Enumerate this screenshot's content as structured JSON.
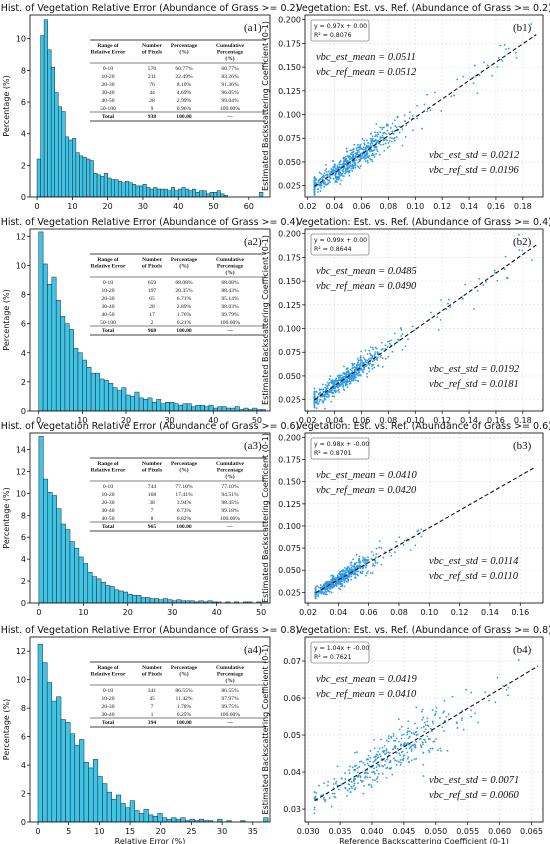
{
  "colors": {
    "bar_fill": "#40c4e4",
    "bar_edge": "#17263d",
    "scatter": "#2e9be6",
    "fit_line": "#111111",
    "frame": "#000000"
  },
  "chart_data": [
    {
      "type": "bar",
      "panel_label": "(a1)",
      "title": "Hist. of Vegetation Relative Error (Abundance of Grass >= 0.2)",
      "xlabel": "",
      "ylabel": "Percentage (%)",
      "xlim": [
        -2,
        66
      ],
      "ylim": [
        0,
        11.5
      ],
      "xticks": [
        0,
        10,
        20,
        30,
        40,
        50,
        60
      ],
      "yticks": [
        0,
        2,
        4,
        6,
        8,
        10
      ],
      "bin_width": 1,
      "values": [
        2.4,
        10.2,
        11.2,
        9.3,
        8.2,
        6.6,
        5.7,
        5.4,
        3.8,
        3.6,
        3.7,
        2.8,
        2.6,
        2.5,
        2.4,
        2.3,
        1.5,
        1.4,
        1.3,
        1.5,
        1.2,
        1.1,
        1.1,
        1.0,
        0.9,
        1.0,
        0.9,
        0.8,
        0.7,
        0.7,
        0.8,
        0.6,
        0.5,
        0.6,
        0.5,
        0.5,
        0.5,
        0.4,
        0.6,
        0.4,
        0.5,
        0.6,
        0.5,
        0.4,
        0.5,
        0.3,
        0.4,
        0.4,
        0.2,
        0.3,
        0.3,
        0.4,
        0.2,
        0.1,
        0,
        0,
        0,
        0,
        0,
        0,
        0,
        0,
        0,
        0.3
      ],
      "table": {
        "headers": [
          "Range of Relative Error",
          "Number of Pixels",
          "Percentage (%)",
          "Cumulative Percentage (%)"
        ],
        "rows": [
          [
            "0-10",
            "570",
            "60.77%",
            "60.77%"
          ],
          [
            "10-20",
            "211",
            "22.49%",
            "83.26%"
          ],
          [
            "20-30",
            "76",
            "8.10%",
            "91.36%"
          ],
          [
            "30-40",
            "44",
            "4.69%",
            "96.05%"
          ],
          [
            "40-50",
            "28",
            "2.99%",
            "99.04%"
          ],
          [
            "50-100",
            "9",
            "0.96%",
            "100.00%"
          ]
        ],
        "total": [
          "Total",
          "938",
          "100.00",
          "—"
        ]
      }
    },
    {
      "type": "scatter",
      "panel_label": "(b1)",
      "title": "Vegetation: Est. vs. Ref. (Abundance of Grass >= 0.2)",
      "xlabel": "",
      "ylabel": "Estimated Backscattering Coefficient (0-1)",
      "xlim": [
        0.018,
        0.195
      ],
      "ylim": [
        0.013,
        0.205
      ],
      "xticks": [
        0.02,
        0.04,
        0.06,
        0.08,
        0.1,
        0.12,
        0.14,
        0.16,
        0.18
      ],
      "yticks": [
        0.025,
        0.05,
        0.075,
        0.1,
        0.125,
        0.15,
        0.175,
        0.2
      ],
      "fit": {
        "slope": 0.97,
        "intercept": 0.0,
        "x_from": 0.025,
        "x_to": 0.19
      },
      "legend_lines": [
        "y = 0.97x + 0.00",
        "R² = 0.8076"
      ],
      "stats": {
        "est_mean": "vbc_est_mean = 0.0511",
        "ref_mean": "vbc_ref_mean = 0.0512",
        "est_std": "vbc_est_std = 0.0212",
        "ref_std": "vbc_ref_std = 0.0196"
      },
      "cloud": {
        "x_center": 0.05,
        "x_spread": 0.018,
        "x_min": 0.025,
        "x_max": 0.19,
        "noise": 0.008,
        "count": 640
      }
    },
    {
      "type": "bar",
      "panel_label": "(a2)",
      "title": "Hist. of Vegetation Relative Error (Abundance of Grass >= 0.4)",
      "xlabel": "",
      "ylabel": "Percentage (%)",
      "xlim": [
        -2,
        53
      ],
      "ylim": [
        0,
        12.5
      ],
      "xticks": [
        0,
        10,
        20,
        30,
        40,
        50
      ],
      "yticks": [
        0,
        2,
        4,
        6,
        8,
        10,
        12
      ],
      "bin_width": 1,
      "values": [
        12.3,
        10.1,
        8.7,
        9.2,
        7.6,
        6.5,
        6.0,
        5.6,
        4.3,
        4.0,
        3.5,
        3.0,
        2.6,
        2.6,
        2.2,
        2.1,
        1.9,
        1.6,
        1.4,
        1.6,
        1.1,
        1.0,
        1.3,
        0.9,
        0.8,
        0.9,
        0.6,
        0.8,
        0.5,
        0.6,
        0.6,
        0.5,
        0.4,
        0.5,
        0.5,
        0.3,
        0.4,
        0.4,
        0.3,
        0.4,
        0.2,
        0.3,
        0.3,
        0.2,
        0.2,
        0.3,
        0.1,
        0.2,
        0.1,
        0.2,
        0.1,
        0.1
      ],
      "table": {
        "headers": [
          "Range of Relative Error",
          "Number of Pixels",
          "Percentage (%)",
          "Cumulative Percentage (%)"
        ],
        "rows": [
          [
            "0-10",
            "659",
            "68.08%",
            "68.08%"
          ],
          [
            "10-20",
            "197",
            "20.35%",
            "88.43%"
          ],
          [
            "20-30",
            "65",
            "6.71%",
            "95.14%"
          ],
          [
            "30-40",
            "28",
            "2.89%",
            "98.03%"
          ],
          [
            "40-50",
            "17",
            "1.76%",
            "99.79%"
          ],
          [
            "50-100",
            "2",
            "0.21%",
            "100.00%"
          ]
        ],
        "total": [
          "Total",
          "968",
          "100.00",
          "—"
        ]
      }
    },
    {
      "type": "scatter",
      "panel_label": "(b2)",
      "title": "Vegetation: Est. vs. Ref. (Abundance of Grass >= 0.4)",
      "xlabel": "",
      "ylabel": "Estimated Backscattering Coefficient (0-1)",
      "xlim": [
        0.018,
        0.195
      ],
      "ylim": [
        0.013,
        0.205
      ],
      "xticks": [
        0.02,
        0.04,
        0.06,
        0.08,
        0.1,
        0.12,
        0.14,
        0.16,
        0.18
      ],
      "yticks": [
        0.025,
        0.05,
        0.075,
        0.1,
        0.125,
        0.15,
        0.175,
        0.2
      ],
      "fit": {
        "slope": 0.99,
        "intercept": 0.0,
        "x_from": 0.025,
        "x_to": 0.19
      },
      "legend_lines": [
        "y = 0.99x + 0.00",
        "R² = 0.8644"
      ],
      "stats": {
        "est_mean": "vbc_est_mean = 0.0485",
        "ref_mean": "vbc_ref_mean = 0.0490",
        "est_std": "vbc_est_std = 0.0192",
        "ref_std": "vbc_ref_std = 0.0181"
      },
      "cloud": {
        "x_center": 0.046,
        "x_spread": 0.016,
        "x_min": 0.025,
        "x_max": 0.19,
        "noise": 0.007,
        "count": 600
      }
    },
    {
      "type": "bar",
      "panel_label": "(a3)",
      "title": "Hist. of Vegetation Relative Error (Abundance of Grass >= 0.6)",
      "xlabel": "",
      "ylabel": "Percentage (%)",
      "xlim": [
        -2,
        52
      ],
      "ylim": [
        0,
        15.5
      ],
      "xticks": [
        0,
        10,
        20,
        30,
        40,
        50
      ],
      "yticks": [
        0,
        2,
        4,
        6,
        8,
        10,
        12,
        14
      ],
      "bin_width": 1,
      "values": [
        15.2,
        11.3,
        10.1,
        9.8,
        8.6,
        7.2,
        6.7,
        5.6,
        5.0,
        4.2,
        3.6,
        2.8,
        2.4,
        2.2,
        1.9,
        1.6,
        1.5,
        1.2,
        1.1,
        1.0,
        0.8,
        0.7,
        0.7,
        0.5,
        0.5,
        0.4,
        0.4,
        0.3,
        0.4,
        0.3,
        0.2,
        0.3,
        0.2,
        0.2,
        0.2,
        0.1,
        0.2,
        0.1,
        0.2,
        0.1,
        0.1,
        0,
        0.1,
        0,
        0.1,
        0,
        0.1,
        0.1,
        0,
        0.1
      ],
      "table": {
        "headers": [
          "Range of Relative Error",
          "Number of Pixels",
          "Percentage (%)",
          "Cumulative Percentage (%)"
        ],
        "rows": [
          [
            "0-10",
            "744",
            "77.10%",
            "77.10%"
          ],
          [
            "10-20",
            "168",
            "17.41%",
            "94.51%"
          ],
          [
            "20-30",
            "38",
            "3.94%",
            "98.45%"
          ],
          [
            "30-40",
            "7",
            "0.73%",
            "99.18%"
          ],
          [
            "40-50",
            "8",
            "0.82%",
            "100.00%"
          ]
        ],
        "total": [
          "Total",
          "965",
          "100.00",
          "—"
        ]
      }
    },
    {
      "type": "scatter",
      "panel_label": "(b3)",
      "title": "Vegetation: Est. vs. Ref. (Abundance of Grass >= 0.6)",
      "xlabel": "",
      "ylabel": "Estimated Backscattering Coefficient (0-1)",
      "xlim": [
        0.018,
        0.175
      ],
      "ylim": [
        0.013,
        0.205
      ],
      "xticks": [
        0.02,
        0.04,
        0.06,
        0.08,
        0.1,
        0.12,
        0.14,
        0.16
      ],
      "yticks": [
        0.025,
        0.05,
        0.075,
        0.1,
        0.125,
        0.15,
        0.175,
        0.2
      ],
      "fit": {
        "slope": 0.98,
        "intercept": -0.0,
        "x_from": 0.025,
        "x_to": 0.17
      },
      "legend_lines": [
        "y = 0.98x + -0.00",
        "R² = 0.8701"
      ],
      "stats": {
        "est_mean": "vbc_est_mean = 0.0410",
        "ref_mean": "vbc_ref_mean = 0.0420",
        "est_std": "vbc_est_std = 0.0114",
        "ref_std": "vbc_ref_std = 0.0110"
      },
      "cloud": {
        "x_center": 0.04,
        "x_spread": 0.01,
        "x_min": 0.025,
        "x_max": 0.095,
        "noise": 0.005,
        "count": 560
      }
    },
    {
      "type": "bar",
      "panel_label": "(a4)",
      "title": "Hist. of Vegetation Relative Error (Abundance of Grass >= 0.8)",
      "xlabel": "Relative Error (%)",
      "ylabel": "Percentage (%)",
      "xlim": [
        -1.3,
        37.8
      ],
      "ylim": [
        0,
        13
      ],
      "xticks": [
        0,
        5,
        10,
        15,
        20,
        25,
        30,
        35
      ],
      "yticks": [
        0,
        2,
        4,
        6,
        8,
        10,
        12
      ],
      "bin_width": 0.75,
      "values": [
        12.5,
        11.2,
        9.8,
        8.5,
        8.8,
        7.2,
        7.0,
        6.2,
        5.4,
        5.8,
        4.2,
        3.8,
        4.4,
        3.2,
        2.7,
        2.1,
        1.6,
        1.9,
        1.3,
        1.0,
        1.5,
        0.8,
        0.6,
        0.9,
        0.5,
        0.4,
        0.6,
        0.3,
        0.2,
        0.3,
        0.2,
        0.3,
        0.1,
        0.2,
        0.1,
        0.2,
        0.1,
        0.1,
        0,
        0.2,
        0,
        0.1,
        0,
        0,
        0.1,
        0,
        0,
        0,
        0,
        0.3
      ],
      "table": {
        "headers": [
          "Range of Relative Error",
          "Number of Pixels",
          "Percentage (%)",
          "Cumulative Percentage (%)"
        ],
        "rows": [
          [
            "0-10",
            "341",
            "86.55%",
            "86.55%"
          ],
          [
            "10-20",
            "45",
            "11.42%",
            "97.97%"
          ],
          [
            "20-30",
            "7",
            "1.78%",
            "99.75%"
          ],
          [
            "30-40",
            "1",
            "0.25%",
            "100.00%"
          ]
        ],
        "total": [
          "Total",
          "394",
          "100.00",
          "—"
        ]
      }
    },
    {
      "type": "scatter",
      "panel_label": "(b4)",
      "title": "Vegetation: Est. vs. Ref. (Abundance of Grass >= 0.8)",
      "xlabel": "Reference Backscattering Coefficient (0-1)",
      "ylabel": "Estimated Backscattering Coefficient (0-1)",
      "xlim": [
        0.0295,
        0.0668
      ],
      "ylim": [
        0.0265,
        0.0765
      ],
      "xticks": [
        0.03,
        0.035,
        0.04,
        0.045,
        0.05,
        0.055,
        0.06,
        0.065
      ],
      "yticks": [
        0.03,
        0.04,
        0.05,
        0.06,
        0.07
      ],
      "fit": {
        "slope": 1.04,
        "intercept": -0.0,
        "x_from": 0.031,
        "x_to": 0.066
      },
      "legend_lines": [
        "y = 1.04x + -0.00",
        "R² = 0.7621"
      ],
      "stats": {
        "est_mean": "vbc_est_mean = 0.0419",
        "ref_mean": "vbc_ref_mean = 0.0410",
        "est_std": "vbc_est_std = 0.0071",
        "ref_std": "vbc_ref_std = 0.0060"
      },
      "cloud": {
        "x_center": 0.042,
        "x_spread": 0.0055,
        "x_min": 0.031,
        "x_max": 0.066,
        "noise": 0.0033,
        "count": 380
      }
    }
  ]
}
